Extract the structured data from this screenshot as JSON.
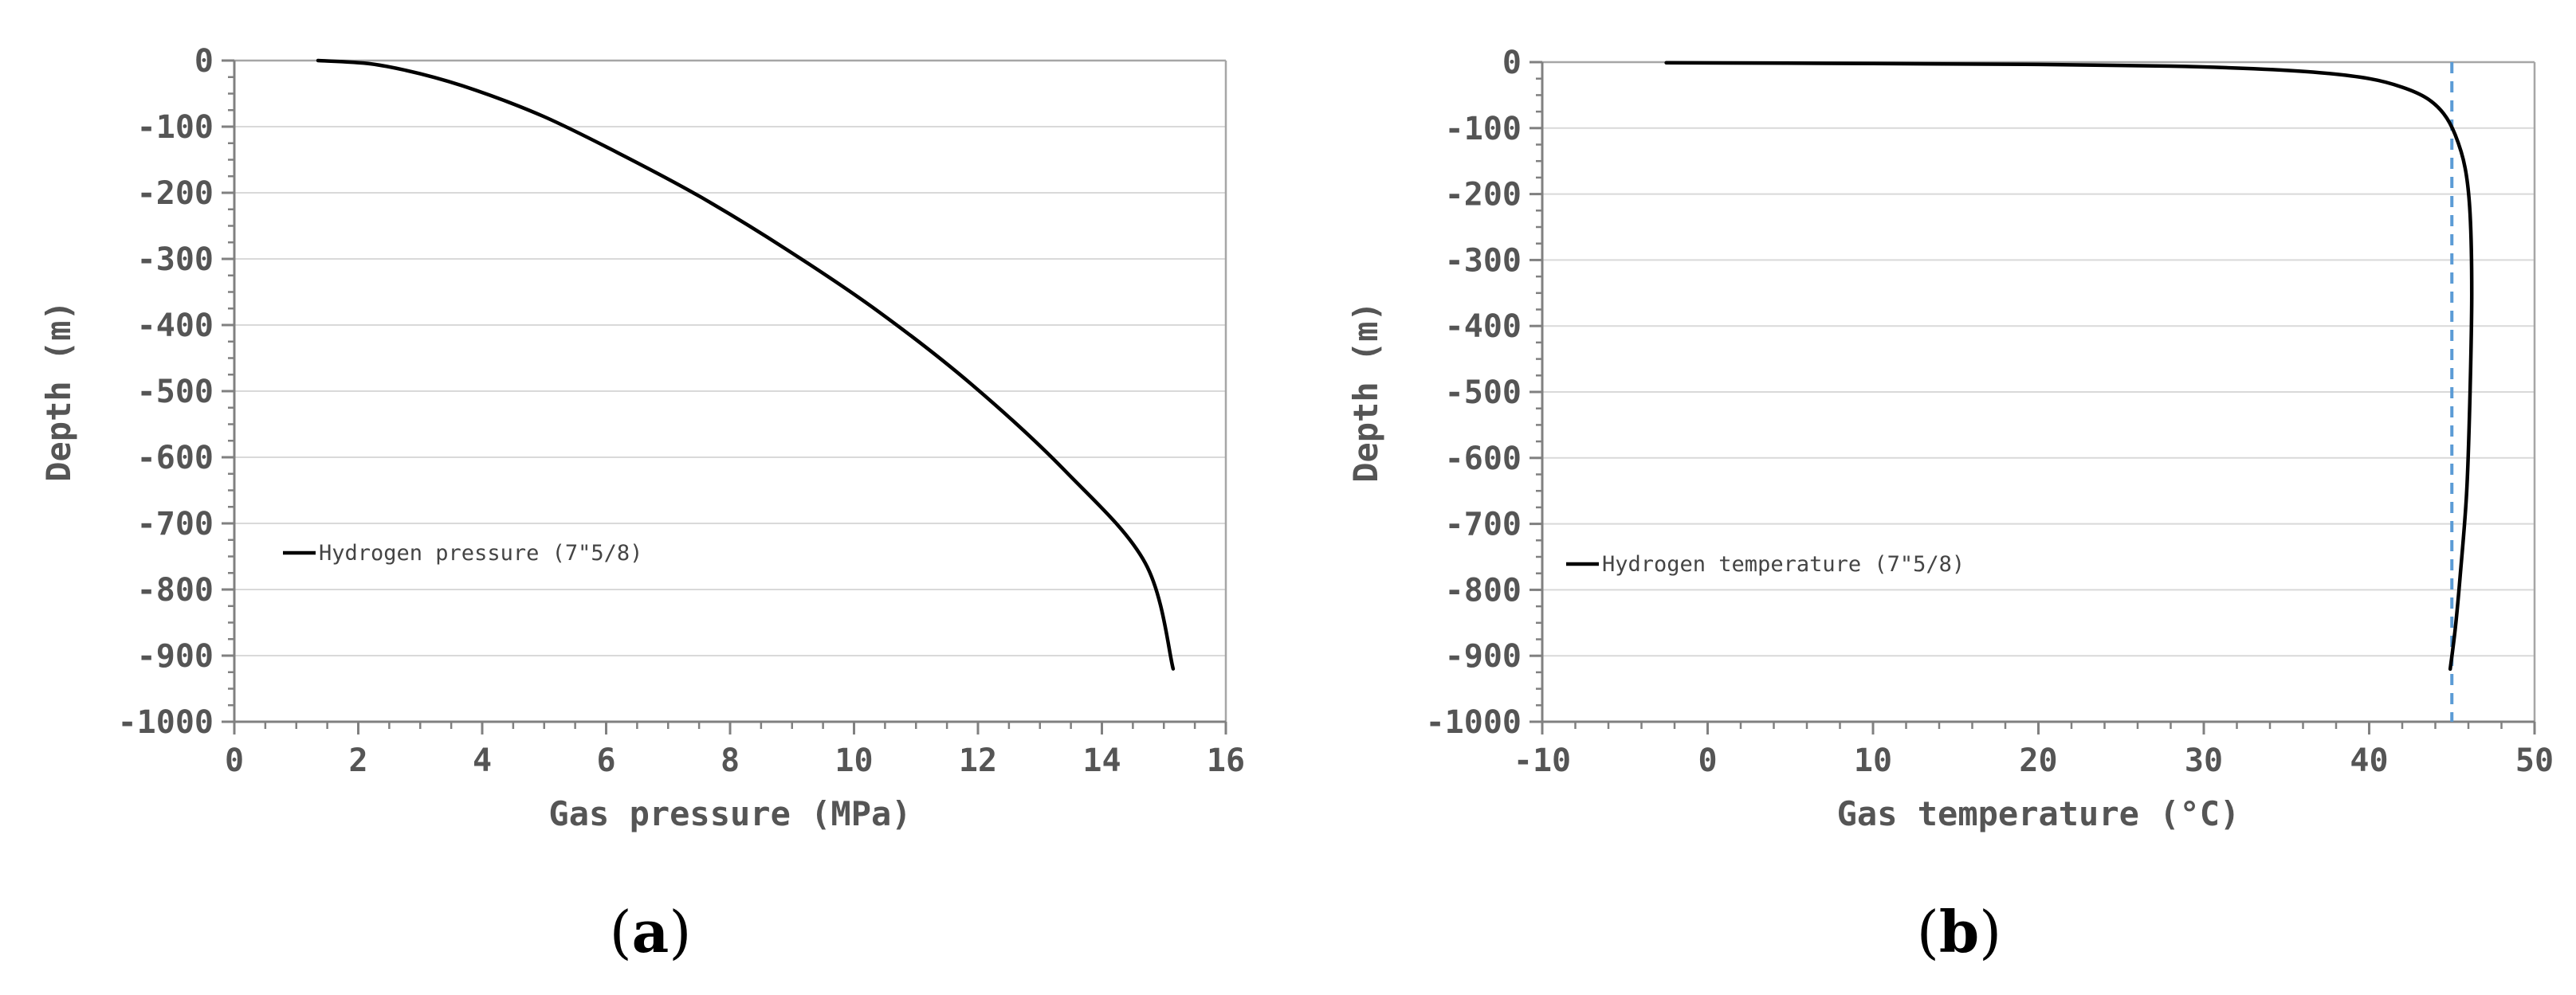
{
  "chart_data": [
    {
      "type": "line",
      "panel_label": "a",
      "xlabel": "Gas pressure (MPa)",
      "ylabel": "Depth (m)",
      "xlim": [
        0,
        16
      ],
      "ylim": [
        -1000,
        0
      ],
      "xticks": [
        0,
        2,
        4,
        6,
        8,
        10,
        12,
        14,
        16
      ],
      "yticks": [
        0,
        -100,
        -200,
        -300,
        -400,
        -500,
        -600,
        -700,
        -800,
        -900,
        -1000
      ],
      "grid": "horizontal",
      "legend_placement": "lower-left",
      "series": [
        {
          "name": "Hydrogen pressure (7\"5/8)",
          "color": "#000000",
          "x": [
            1.35,
            2.2,
            3.0,
            3.9,
            5.0,
            6.2,
            7.5,
            8.9,
            10.4,
            11.9,
            13.4,
            14.7,
            15.15
          ],
          "y": [
            0,
            -5,
            -20,
            -45,
            -85,
            -140,
            -205,
            -285,
            -380,
            -490,
            -620,
            -760,
            -920
          ]
        }
      ]
    },
    {
      "type": "line",
      "panel_label": "b",
      "xlabel": "Gas temperature (°C)",
      "ylabel": "Depth (m)",
      "xlim": [
        -10,
        50
      ],
      "ylim": [
        -1000,
        0
      ],
      "xticks": [
        -10,
        0,
        10,
        20,
        30,
        40,
        50
      ],
      "yticks": [
        0,
        -100,
        -200,
        -300,
        -400,
        -500,
        -600,
        -700,
        -800,
        -900,
        -1000
      ],
      "grid": "horizontal",
      "legend_placement": "lower-left",
      "reference_line": {
        "x": 45,
        "color": "#5b9bd5",
        "style": "dashed"
      },
      "series": [
        {
          "name": "Hydrogen temperature (7\"5/8)",
          "color": "#000000",
          "x": [
            -2.5,
            10,
            20,
            28,
            33,
            37,
            40,
            42,
            43.5,
            44.5,
            45.2,
            45.8,
            46.1,
            46.2,
            46.1,
            45.9,
            45.5,
            45.2,
            44.9
          ],
          "y": [
            -1,
            -2,
            -3.5,
            -6,
            -10,
            -16,
            -25,
            -38,
            -55,
            -78,
            -110,
            -160,
            -230,
            -350,
            -500,
            -650,
            -780,
            -860,
            -920
          ]
        }
      ]
    }
  ]
}
